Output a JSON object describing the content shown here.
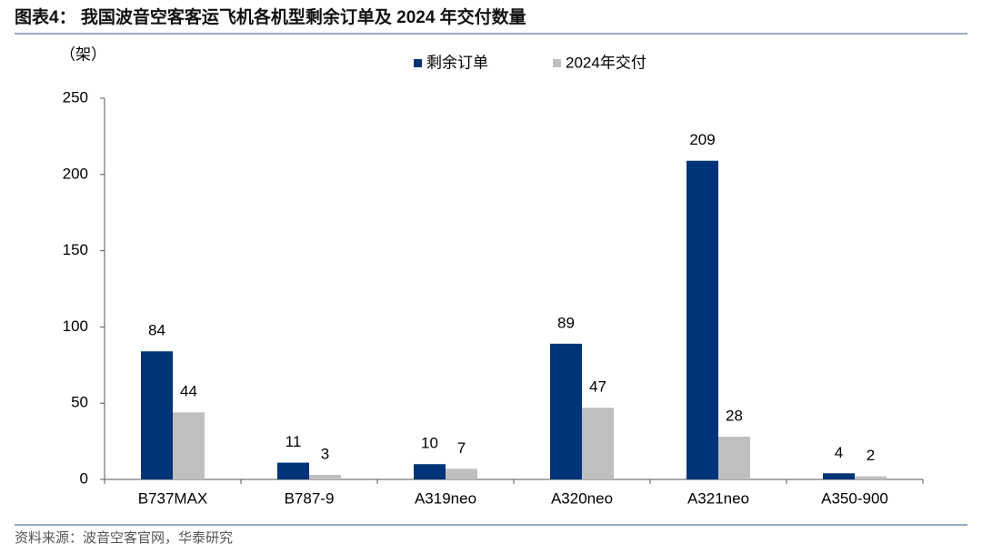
{
  "chart_data": {
    "type": "bar",
    "title": "图表4：  我国波音空客客运飞机各机型剩余订单及 2024 年交付数量",
    "y_label": "（架）",
    "source": "资料来源：波音空客官网，华泰研究",
    "categories": [
      "B737MAX",
      "B787-9",
      "A319neo",
      "A320neo",
      "A321neo",
      "A350-900"
    ],
    "series": [
      {
        "name": "剩余订单",
        "color": "#003478",
        "values": [
          84,
          11,
          10,
          89,
          209,
          4
        ]
      },
      {
        "name": "2024年交付",
        "color": "#bfbfbf",
        "values": [
          44,
          3,
          7,
          47,
          28,
          2
        ]
      }
    ],
    "ylim": [
      0,
      250
    ],
    "yticks": [
      0,
      50,
      100,
      150,
      200,
      250
    ],
    "grid": false,
    "legend": "top"
  }
}
